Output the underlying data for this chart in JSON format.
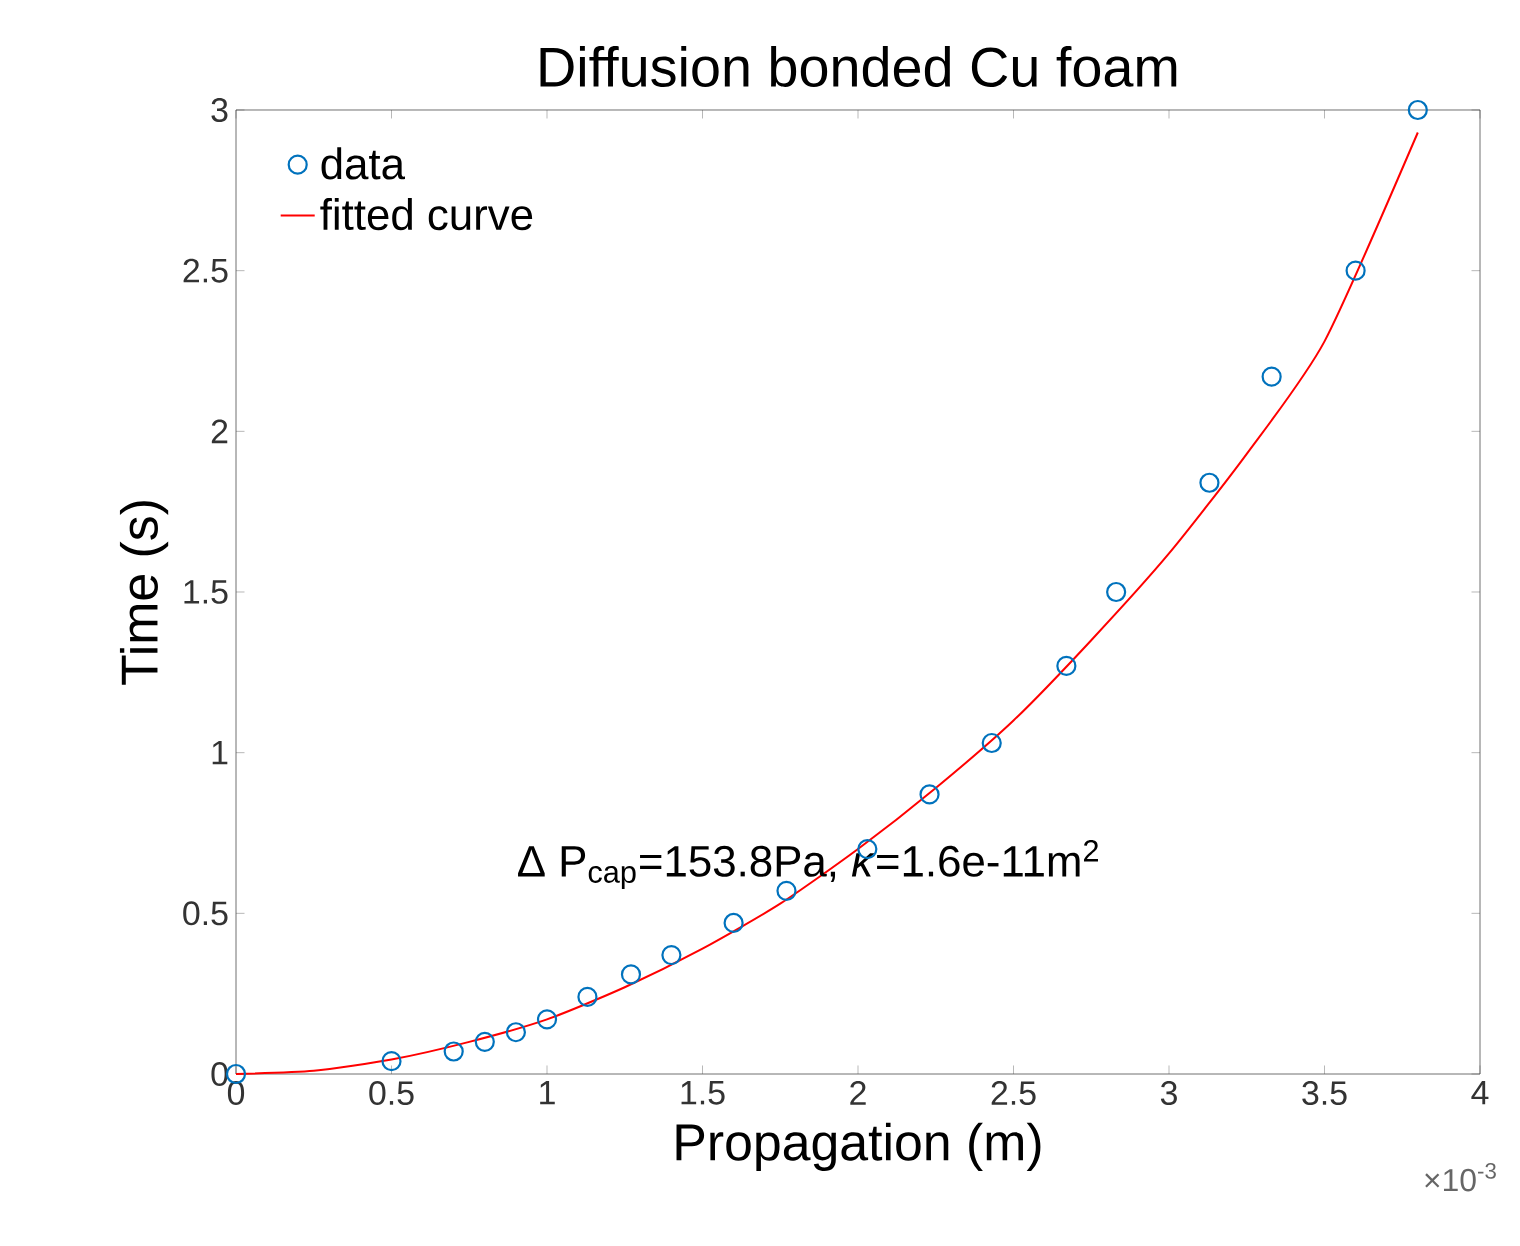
{
  "chart_data": {
    "type": "scatter",
    "title": "Diffusion bonded Cu foam",
    "xlabel": "Propagation (m)",
    "ylabel": "Time (s)",
    "xlim": [
      0,
      4
    ],
    "ylim": [
      0,
      3
    ],
    "xticks": [
      0,
      0.5,
      1,
      1.5,
      2,
      2.5,
      3,
      3.5,
      4
    ],
    "yticks": [
      0,
      0.5,
      1,
      1.5,
      2,
      2.5,
      3
    ],
    "legend": "top left",
    "grid": false,
    "annotations": [
      "Δ P$_{cap}$=153.8Pa, *κ*=1.6e-11m$^{2}$",
      "×10$^{-3}$"
    ],
    "series": [
      {
        "name": "data",
        "marker": "circle",
        "color": "#0072bd",
        "x": [
          0,
          0.5,
          0.7,
          0.8,
          0.9,
          1.0,
          1.13,
          1.27,
          1.4,
          1.6,
          1.77,
          2.03,
          2.23,
          2.43,
          2.67,
          2.83,
          3.13,
          3.33,
          3.6,
          3.8
        ],
        "values": [
          0,
          0.04,
          0.07,
          0.1,
          0.13,
          0.17,
          0.24,
          0.31,
          0.37,
          0.47,
          0.57,
          0.7,
          0.87,
          1.03,
          1.27,
          1.5,
          1.84,
          2.17,
          2.5,
          3.0
        ]
      },
      {
        "name": "fitted curve",
        "type": "line",
        "marker": "none",
        "line_style": "solid",
        "color": "#ff0000",
        "x": [
          0,
          0.25,
          0.5,
          0.75,
          1.0,
          1.25,
          1.5,
          1.75,
          2.0,
          2.25,
          2.5,
          2.75,
          3.0,
          3.25,
          3.5,
          3.8
        ],
        "values": [
          0,
          0.01,
          0.045,
          0.1,
          0.17,
          0.27,
          0.39,
          0.53,
          0.7,
          0.89,
          1.1,
          1.35,
          1.62,
          1.93,
          2.28,
          2.93
        ]
      }
    ]
  }
}
